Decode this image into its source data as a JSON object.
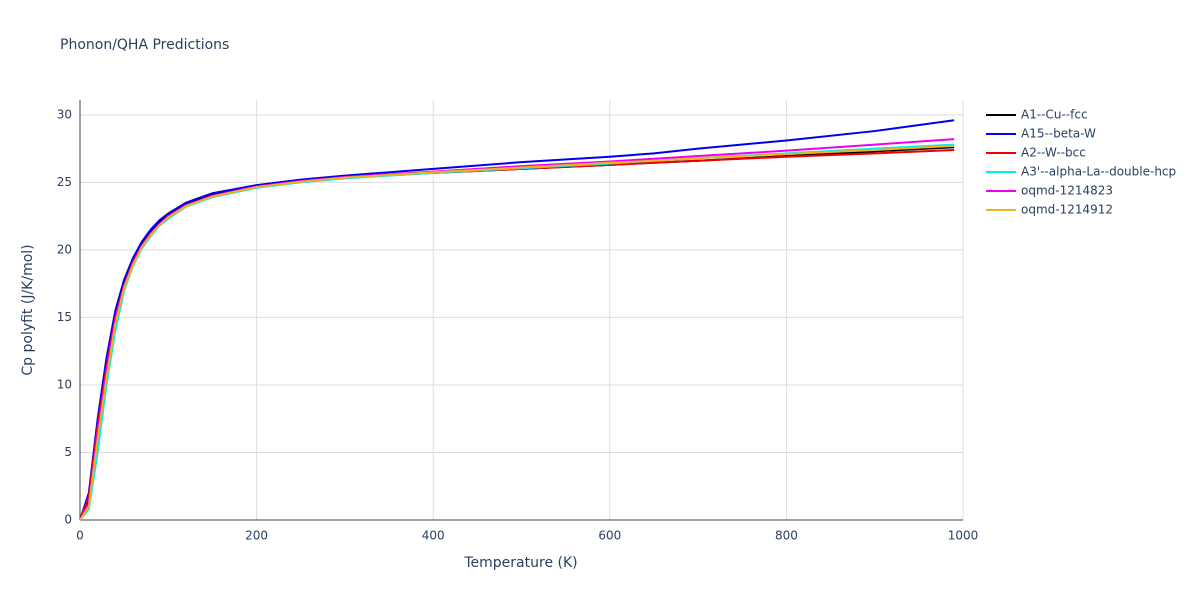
{
  "chart_data": {
    "type": "line",
    "title": "Phonon/QHA Predictions",
    "x_label": "Temperature (K)",
    "y_label": "Cp polyfit (J/K/mol)",
    "x": [
      0,
      10,
      20,
      30,
      40,
      50,
      60,
      70,
      80,
      90,
      100,
      120,
      150,
      200,
      250,
      300,
      400,
      500,
      600,
      650,
      700,
      800,
      900,
      990
    ],
    "series": [
      {
        "name": "A1--Cu--fcc",
        "color": "#000000",
        "values": [
          0,
          1.5,
          7,
          11.5,
          15.2,
          17.6,
          19.3,
          20.5,
          21.4,
          22.1,
          22.6,
          23.4,
          24.1,
          24.7,
          25.1,
          25.4,
          25.7,
          26.0,
          26.3,
          26.45,
          26.6,
          26.95,
          27.3,
          27.6
        ]
      },
      {
        "name": "A15--beta-W",
        "color": "#0000ee",
        "values": [
          0,
          2,
          7.5,
          12,
          15.5,
          17.8,
          19.4,
          20.6,
          21.5,
          22.2,
          22.7,
          23.5,
          24.2,
          24.8,
          25.2,
          25.5,
          26.0,
          26.5,
          26.9,
          27.15,
          27.5,
          28.1,
          28.8,
          29.6
        ]
      },
      {
        "name": "A2--W--bcc",
        "color": "#ee0000",
        "values": [
          0,
          1.7,
          7,
          11.3,
          15,
          17.4,
          19.1,
          20.3,
          21.2,
          21.9,
          22.5,
          23.3,
          24.0,
          24.65,
          25.05,
          25.35,
          25.7,
          26.0,
          26.3,
          26.45,
          26.6,
          26.9,
          27.15,
          27.4
        ]
      },
      {
        "name": "A3'--alpha-La--double-hcp",
        "color": "#00eeee",
        "values": [
          0,
          0.8,
          5,
          10,
          14,
          17,
          18.8,
          20.1,
          21.0,
          21.8,
          22.3,
          23.2,
          23.9,
          24.6,
          25.0,
          25.3,
          25.7,
          26.05,
          26.4,
          26.6,
          26.8,
          27.15,
          27.5,
          27.8
        ]
      },
      {
        "name": "oqmd-1214823",
        "color": "#ee00ee",
        "values": [
          0,
          1.2,
          6.5,
          11,
          14.8,
          17.3,
          19.0,
          20.3,
          21.2,
          21.9,
          22.5,
          23.3,
          24.0,
          24.7,
          25.1,
          25.4,
          25.8,
          26.2,
          26.55,
          26.75,
          26.95,
          27.35,
          27.8,
          28.2
        ]
      },
      {
        "name": "oqmd-1214912",
        "color": "#f0b020",
        "values": [
          0,
          1.0,
          6,
          10.5,
          14.5,
          17.2,
          18.9,
          20.2,
          21.1,
          21.85,
          22.4,
          23.25,
          23.95,
          24.65,
          25.05,
          25.35,
          25.75,
          26.1,
          26.45,
          26.6,
          26.8,
          27.1,
          27.4,
          27.7
        ]
      }
    ],
    "xlim": [
      0,
      1000
    ],
    "ylim": [
      0,
      31.1
    ],
    "xticks": [
      0,
      200,
      400,
      600,
      800,
      1000
    ],
    "yticks": [
      0,
      5,
      10,
      15,
      20,
      25,
      30
    ],
    "grid": true,
    "legend": "right"
  }
}
